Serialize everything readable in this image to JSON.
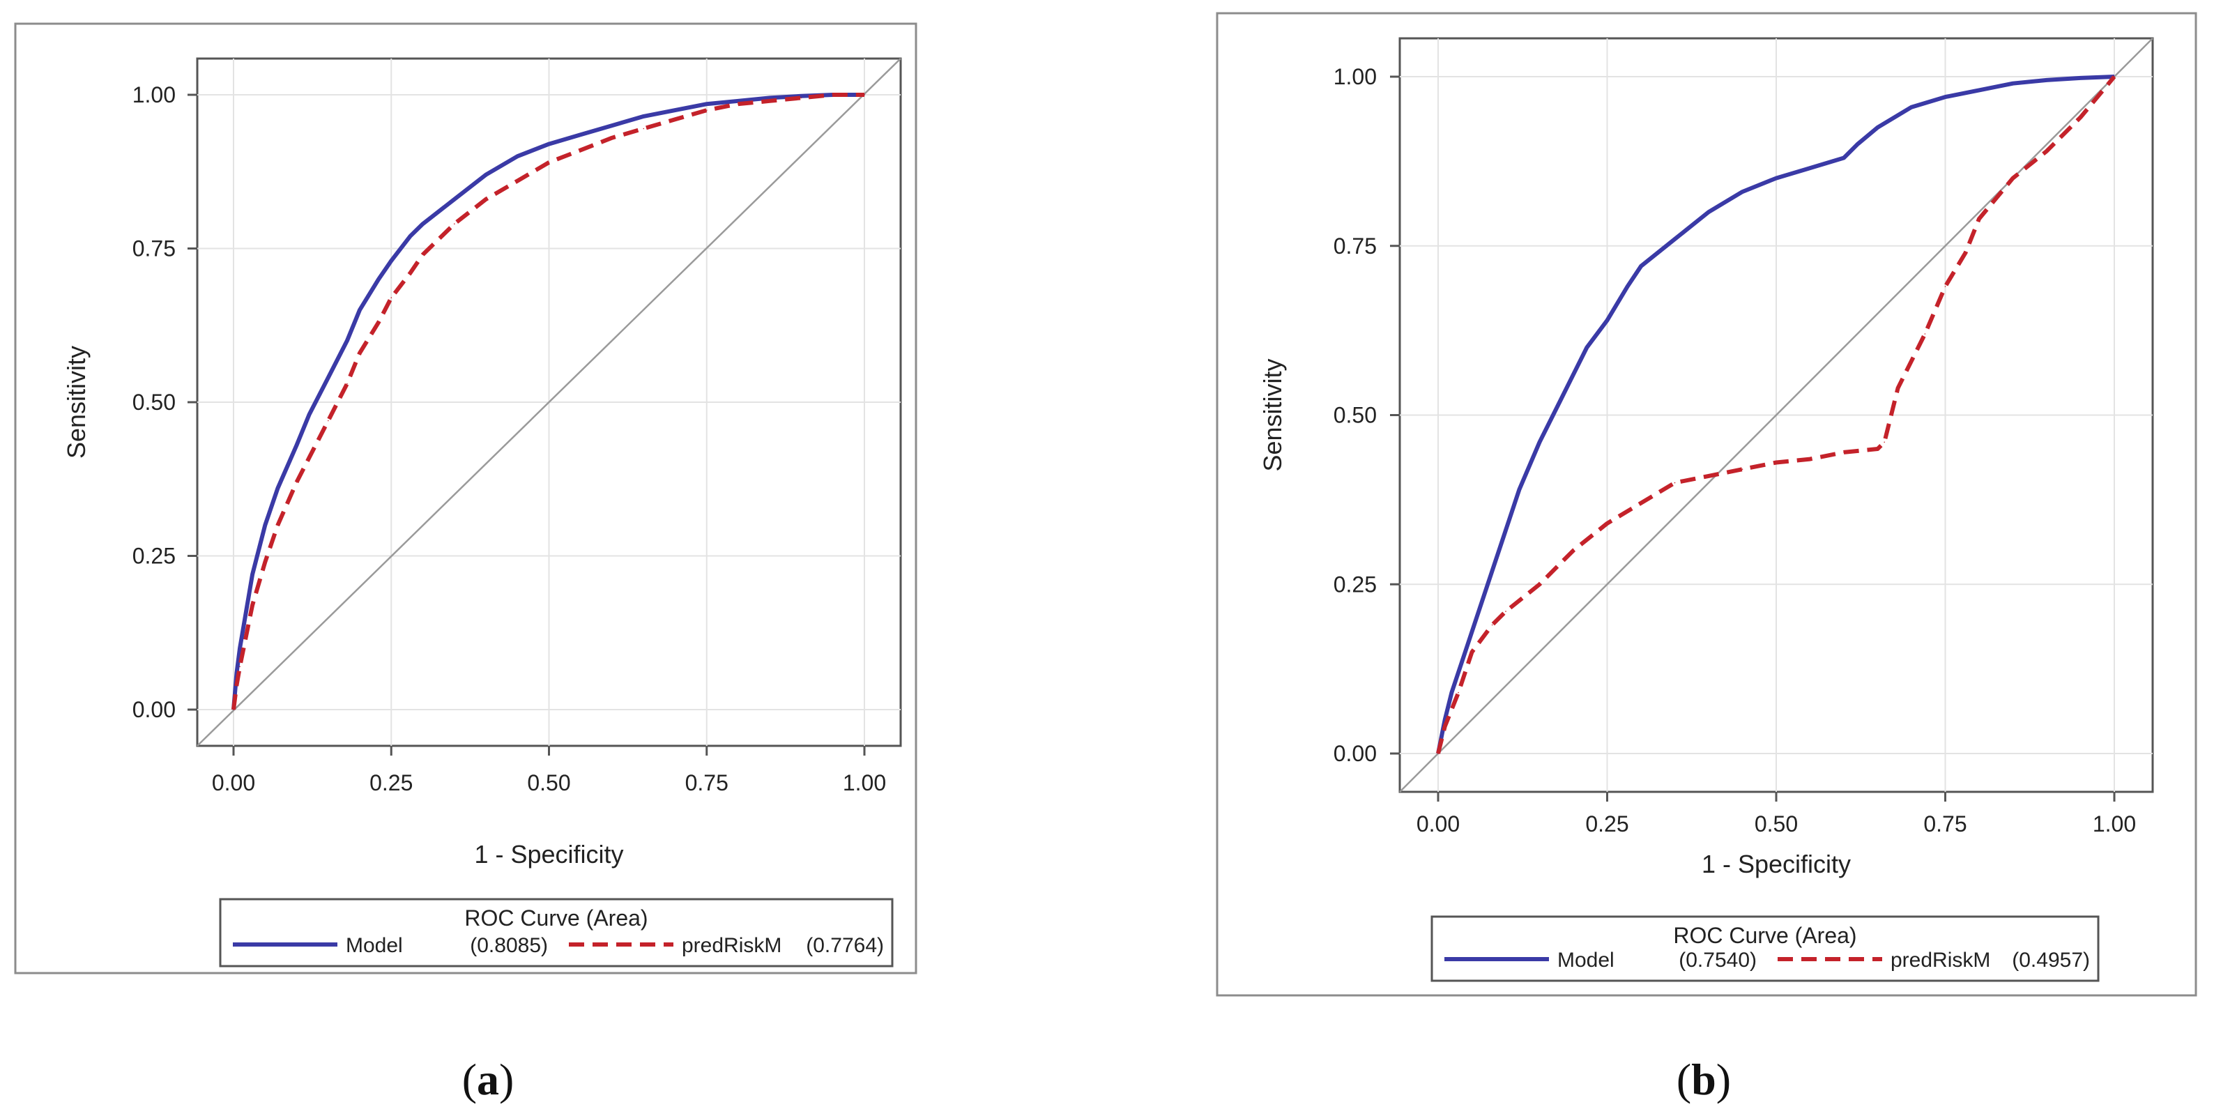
{
  "chart_data": [
    {
      "type": "line",
      "panel_label": "a",
      "xlabel": "1 - Specificity",
      "ylabel": "Sensitivity",
      "xlim": [
        0,
        1
      ],
      "ylim": [
        0,
        1
      ],
      "xticks": [
        "0.00",
        "0.25",
        "0.50",
        "0.75",
        "1.00"
      ],
      "yticks": [
        "0.00",
        "0.25",
        "0.50",
        "0.75",
        "1.00"
      ],
      "reference_line": "diagonal",
      "legend": {
        "title": "ROC Curve (Area)",
        "position": "below"
      },
      "series": [
        {
          "name": "Model",
          "area": "(0.8085)",
          "style": "solid",
          "color": "#3a3aa6",
          "x": [
            0,
            0.005,
            0.01,
            0.02,
            0.03,
            0.05,
            0.07,
            0.1,
            0.12,
            0.15,
            0.18,
            0.2,
            0.23,
            0.25,
            0.28,
            0.3,
            0.35,
            0.4,
            0.45,
            0.5,
            0.55,
            0.6,
            0.65,
            0.7,
            0.75,
            0.8,
            0.85,
            0.9,
            0.95,
            1.0
          ],
          "y": [
            0,
            0.06,
            0.1,
            0.16,
            0.22,
            0.3,
            0.36,
            0.43,
            0.48,
            0.54,
            0.6,
            0.65,
            0.7,
            0.73,
            0.77,
            0.79,
            0.83,
            0.87,
            0.9,
            0.92,
            0.935,
            0.95,
            0.965,
            0.975,
            0.985,
            0.99,
            0.995,
            0.998,
            1.0,
            1.0
          ]
        },
        {
          "name": "predRiskM",
          "area": "(0.7764)",
          "style": "dashed",
          "color": "#c4222a",
          "x": [
            0,
            0.005,
            0.01,
            0.02,
            0.03,
            0.05,
            0.07,
            0.1,
            0.12,
            0.15,
            0.18,
            0.2,
            0.23,
            0.25,
            0.28,
            0.3,
            0.35,
            0.4,
            0.45,
            0.5,
            0.55,
            0.6,
            0.65,
            0.7,
            0.75,
            0.8,
            0.85,
            0.9,
            0.95,
            1.0
          ],
          "y": [
            0,
            0.04,
            0.07,
            0.12,
            0.17,
            0.24,
            0.3,
            0.37,
            0.41,
            0.47,
            0.53,
            0.58,
            0.63,
            0.67,
            0.71,
            0.74,
            0.79,
            0.83,
            0.86,
            0.89,
            0.91,
            0.93,
            0.945,
            0.96,
            0.975,
            0.985,
            0.99,
            0.995,
            1.0,
            1.0
          ]
        }
      ]
    },
    {
      "type": "line",
      "panel_label": "b",
      "xlabel": "1 - Specificity",
      "ylabel": "Sensitivity",
      "xlim": [
        0,
        1
      ],
      "ylim": [
        0,
        1
      ],
      "xticks": [
        "0.00",
        "0.25",
        "0.50",
        "0.75",
        "1.00"
      ],
      "yticks": [
        "0.00",
        "0.25",
        "0.50",
        "0.75",
        "1.00"
      ],
      "reference_line": "diagonal",
      "legend": {
        "title": "ROC Curve (Area)",
        "position": "below"
      },
      "series": [
        {
          "name": "Model",
          "area": "(0.7540)",
          "style": "solid",
          "color": "#3a3aa6",
          "x": [
            0,
            0.01,
            0.02,
            0.04,
            0.06,
            0.08,
            0.1,
            0.12,
            0.15,
            0.18,
            0.2,
            0.22,
            0.25,
            0.28,
            0.3,
            0.35,
            0.4,
            0.45,
            0.5,
            0.55,
            0.6,
            0.62,
            0.65,
            0.7,
            0.75,
            0.8,
            0.85,
            0.9,
            0.95,
            1.0
          ],
          "y": [
            0,
            0.05,
            0.09,
            0.15,
            0.21,
            0.27,
            0.33,
            0.39,
            0.46,
            0.52,
            0.56,
            0.6,
            0.64,
            0.69,
            0.72,
            0.76,
            0.8,
            0.83,
            0.85,
            0.865,
            0.88,
            0.9,
            0.925,
            0.955,
            0.97,
            0.98,
            0.99,
            0.995,
            0.998,
            1.0
          ]
        },
        {
          "name": "predRiskM",
          "area": "(0.4957)",
          "style": "dashed",
          "color": "#c4222a",
          "x": [
            0,
            0.01,
            0.03,
            0.05,
            0.08,
            0.1,
            0.15,
            0.2,
            0.25,
            0.3,
            0.35,
            0.4,
            0.45,
            0.5,
            0.55,
            0.6,
            0.65,
            0.66,
            0.68,
            0.7,
            0.72,
            0.75,
            0.78,
            0.8,
            0.85,
            0.9,
            0.95,
            1.0
          ],
          "y": [
            0,
            0.04,
            0.09,
            0.15,
            0.19,
            0.21,
            0.25,
            0.3,
            0.34,
            0.37,
            0.4,
            0.41,
            0.42,
            0.43,
            0.435,
            0.445,
            0.45,
            0.46,
            0.54,
            0.58,
            0.62,
            0.69,
            0.74,
            0.79,
            0.85,
            0.89,
            0.94,
            1.0
          ]
        }
      ]
    }
  ]
}
